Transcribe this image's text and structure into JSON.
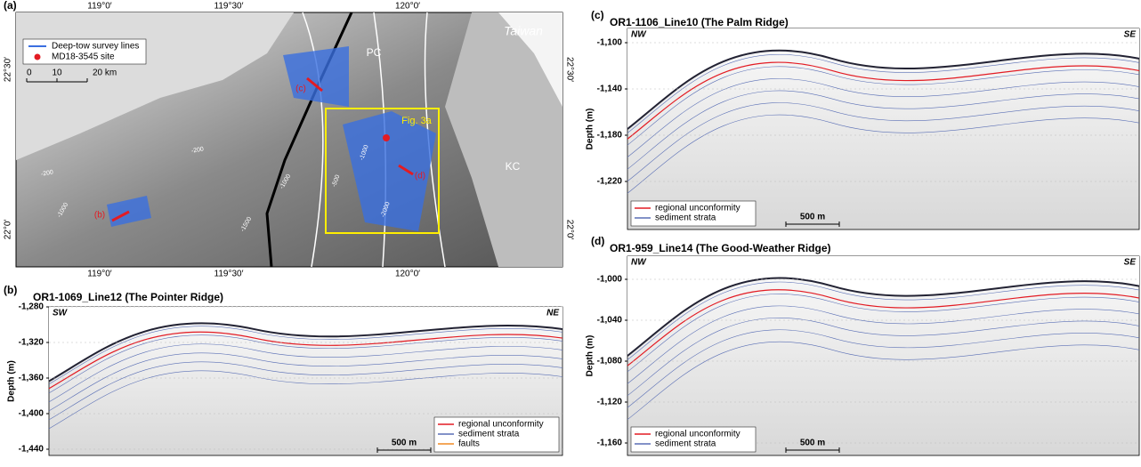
{
  "map": {
    "label": "(a)",
    "lon_labels": [
      "119°0′",
      "119°30′",
      "120°0′"
    ],
    "lat_labels": [
      "22°30′",
      "22°0′"
    ],
    "places": [
      "Taiwan",
      "PC",
      "KC",
      "Fig. 3a"
    ],
    "site_labels": [
      "(b)",
      "(c)",
      "(d)"
    ],
    "contours": [
      "-200",
      "-200",
      "-1000",
      "-1500",
      "-1000",
      "-1000",
      "-2000",
      "-500"
    ],
    "legend": [
      "Deep-tow survey lines",
      "MD18-3545 site"
    ],
    "scale": [
      "0",
      "10",
      "20 km"
    ]
  },
  "profiles": [
    {
      "label": "(b)",
      "title": "OR1-1069_Line12 (The Pointer Ridge)",
      "left": "SW",
      "right": "NE",
      "ylabel": "Depth (m)",
      "yticks": [
        "-1,280",
        "-1,320",
        "-1,360",
        "-1,400",
        "-1,440"
      ],
      "legend": [
        "regional unconformity",
        "sediment strata",
        "faults"
      ],
      "scale": "500 m"
    },
    {
      "label": "(c)",
      "title": "OR1-1106_Line10 (The Palm Ridge)",
      "left": "NW",
      "right": "SE",
      "ylabel": "Depth (m)",
      "yticks": [
        "-1,100",
        "-1,140",
        "-1,180",
        "-1,220"
      ],
      "legend": [
        "regional unconformity",
        "sediment strata"
      ],
      "scale": "500 m"
    },
    {
      "label": "(d)",
      "title": "OR1-959_Line14 (The Good-Weather Ridge)",
      "left": "NW",
      "right": "SE",
      "ylabel": "Depth (m)",
      "yticks": [
        "-1,000",
        "-1,040",
        "-1,080",
        "-1,120",
        "-1,160"
      ],
      "legend": [
        "regional unconformity",
        "sediment strata"
      ],
      "scale": "500 m"
    }
  ]
}
